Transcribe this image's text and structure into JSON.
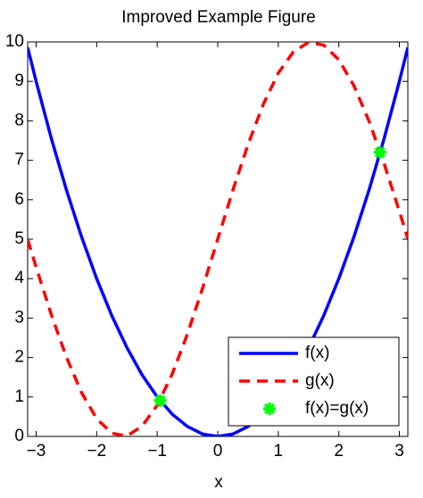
{
  "chart_data": {
    "type": "line",
    "title": "Improved Example Figure",
    "x_label": "x",
    "xlim": [
      -3.14,
      3.14
    ],
    "xticks": [
      {
        "value": -3,
        "label": "−3"
      },
      {
        "value": -2,
        "label": "−2"
      },
      {
        "value": -1,
        "label": "−1"
      },
      0,
      1,
      2,
      3
    ],
    "ylim": [
      0,
      10
    ],
    "yticks": [
      0,
      1,
      2,
      3,
      4,
      5,
      6,
      7,
      8,
      9,
      10
    ],
    "legend": "southeast",
    "series": [
      {
        "name": "f(x)",
        "color": "#0000ff",
        "style": "solid",
        "x": [
          -3.14,
          -3,
          -2.75,
          -2.5,
          -2.25,
          -2,
          -1.75,
          -1.5,
          -1.25,
          -1,
          -0.75,
          -0.5,
          -0.25,
          0,
          0.25,
          0.5,
          0.75,
          1,
          1.25,
          1.5,
          1.75,
          2,
          2.25,
          2.5,
          2.75,
          3,
          3.14
        ],
        "values": [
          9.86,
          9,
          7.56,
          6.25,
          5.06,
          4,
          3.06,
          2.25,
          1.56,
          1,
          0.56,
          0.25,
          0.06,
          0,
          0.06,
          0.25,
          0.56,
          1,
          1.56,
          2.25,
          3.06,
          4,
          5.06,
          6.25,
          7.56,
          9,
          9.86
        ]
      },
      {
        "name": "g(x)",
        "color": "#ff0000",
        "style": "dashed",
        "x": [
          -3.14,
          -3,
          -2.75,
          -2.5,
          -2.25,
          -2,
          -1.75,
          -1.5,
          -1.25,
          -1,
          -0.75,
          -0.5,
          -0.25,
          0,
          0.25,
          0.5,
          0.75,
          1,
          1.25,
          1.5,
          1.75,
          2,
          2.25,
          2.5,
          2.75,
          3,
          3.14
        ],
        "values": [
          4.99,
          4.29,
          3.09,
          2.01,
          1.11,
          0.45,
          0.08,
          0.01,
          0.26,
          0.79,
          1.59,
          2.6,
          3.76,
          5,
          6.24,
          7.4,
          8.41,
          9.21,
          9.75,
          9.99,
          9.92,
          9.55,
          8.89,
          7.99,
          6.91,
          5.71,
          5.01
        ]
      },
      {
        "name": "f(x)=g(x)",
        "color": "#00ff00",
        "style": "marker",
        "x": [
          -0.95,
          2.68
        ],
        "values": [
          0.91,
          7.2
        ]
      }
    ]
  }
}
